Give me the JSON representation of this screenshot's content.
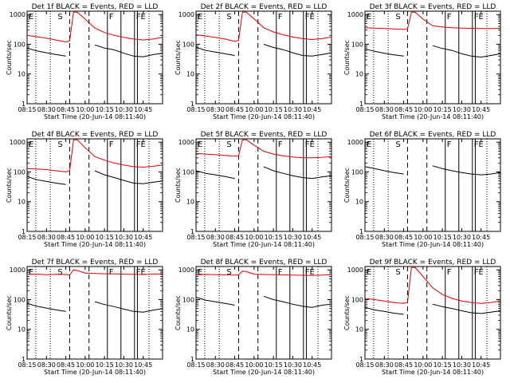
{
  "figure": {
    "ylabel": "Counts/sec",
    "xlabel": "Start Time (20-Jun-14 08:11:40)",
    "xticks": [
      "08:15",
      "08:30",
      "08:45",
      "10:00",
      "10:15",
      "10:30",
      "10:45"
    ],
    "yticks": [
      "1",
      "10",
      "100",
      "1000"
    ],
    "marker_labels": [
      "E",
      "S",
      "F",
      "FE"
    ],
    "colors": {
      "events": "#000000",
      "lld": "#dd0000",
      "markers": "#000000"
    }
  },
  "chart_data": [
    {
      "type": "line",
      "title": "Det 1f BLACK = Events, RED = LLD",
      "series": [
        {
          "name": "Events",
          "color": "#000000",
          "x": [
            0,
            0.5,
            1,
            1.5,
            2,
            2.5,
            3,
            3.5,
            4,
            4.5,
            5,
            5.5,
            6,
            6.5,
            7
          ],
          "y": [
            75,
            60,
            52,
            45,
            40,
            null,
            null,
            95,
            75,
            65,
            50,
            40,
            38,
            45,
            50
          ]
        },
        {
          "name": "LLD",
          "color": "#dd0000",
          "x": [
            0,
            0.5,
            1,
            1.5,
            2,
            2.2,
            2.4,
            2.6,
            3,
            3.5,
            4,
            4.5,
            5,
            5.5,
            6,
            6.5,
            7
          ],
          "y": [
            200,
            180,
            160,
            140,
            120,
            130,
            1200,
            1200,
            700,
            350,
            250,
            200,
            170,
            150,
            140,
            150,
            170
          ]
        }
      ]
    },
    {
      "type": "line",
      "title": "Det 2f BLACK = Events, RED = LLD",
      "series": [
        {
          "name": "Events",
          "color": "#000000",
          "x": [
            0,
            0.5,
            1,
            1.5,
            2,
            2.5,
            3,
            3.5,
            4,
            4.5,
            5,
            5.5,
            6,
            6.5,
            7
          ],
          "y": [
            80,
            62,
            55,
            48,
            42,
            null,
            null,
            100,
            78,
            66,
            52,
            42,
            40,
            45,
            52
          ]
        },
        {
          "name": "LLD",
          "color": "#dd0000",
          "x": [
            0,
            0.5,
            1,
            1.5,
            2,
            2.2,
            2.4,
            2.6,
            3,
            3.5,
            4,
            4.5,
            5,
            5.5,
            6,
            6.5,
            7
          ],
          "y": [
            210,
            190,
            170,
            150,
            125,
            135,
            1200,
            1200,
            720,
            360,
            260,
            210,
            175,
            155,
            145,
            155,
            175
          ]
        }
      ]
    },
    {
      "type": "line",
      "title": "Det 3f BLACK = Events, RED = LLD",
      "series": [
        {
          "name": "Events",
          "color": "#000000",
          "x": [
            0,
            0.5,
            1,
            1.5,
            2,
            2.5,
            3,
            3.5,
            4,
            4.5,
            5,
            5.5,
            6,
            6.5,
            7
          ],
          "y": [
            70,
            58,
            50,
            44,
            40,
            null,
            null,
            90,
            72,
            62,
            48,
            40,
            37,
            42,
            48
          ]
        },
        {
          "name": "LLD",
          "color": "#dd0000",
          "x": [
            0,
            0.5,
            1,
            1.5,
            2,
            2.2,
            2.4,
            2.6,
            3,
            3.5,
            4,
            4.5,
            5,
            5.5,
            6,
            6.5,
            7
          ],
          "y": [
            360,
            350,
            340,
            330,
            320,
            330,
            1200,
            1200,
            700,
            420,
            380,
            360,
            350,
            345,
            340,
            340,
            345
          ]
        }
      ]
    },
    {
      "type": "line",
      "title": "Det 4f BLACK = Events, RED = LLD",
      "series": [
        {
          "name": "Events",
          "color": "#000000",
          "x": [
            0,
            0.5,
            1,
            1.5,
            2,
            2.5,
            3,
            3.5,
            4,
            4.5,
            5,
            5.5,
            6,
            6.5,
            7
          ],
          "y": [
            70,
            55,
            48,
            42,
            38,
            null,
            null,
            110,
            80,
            65,
            52,
            42,
            40,
            45,
            50
          ]
        },
        {
          "name": "LLD",
          "color": "#dd0000",
          "x": [
            0,
            0.5,
            1,
            1.5,
            2,
            2.2,
            2.4,
            2.6,
            3,
            3.5,
            4,
            4.5,
            5,
            5.5,
            6,
            6.5,
            7
          ],
          "y": [
            130,
            125,
            120,
            110,
            100,
            110,
            1200,
            1200,
            650,
            330,
            250,
            200,
            170,
            150,
            145,
            155,
            170
          ]
        }
      ]
    },
    {
      "type": "line",
      "title": "Det 5f BLACK = Events, RED = LLD",
      "series": [
        {
          "name": "Events",
          "color": "#000000",
          "x": [
            0,
            0.5,
            1,
            1.5,
            2,
            2.5,
            3,
            3.5,
            4,
            4.5,
            5,
            5.5,
            6,
            6.5,
            7
          ],
          "y": [
            110,
            90,
            80,
            70,
            60,
            null,
            null,
            150,
            110,
            90,
            75,
            65,
            60,
            68,
            75
          ]
        },
        {
          "name": "LLD",
          "color": "#dd0000",
          "x": [
            0,
            0.5,
            1,
            1.5,
            2,
            2.2,
            2.4,
            2.6,
            3,
            3.5,
            4,
            4.5,
            5,
            5.5,
            6,
            6.5,
            7
          ],
          "y": [
            420,
            400,
            380,
            360,
            340,
            350,
            1200,
            1200,
            800,
            500,
            400,
            350,
            320,
            300,
            300,
            310,
            330
          ]
        }
      ]
    },
    {
      "type": "line",
      "title": "Det 6f BLACK = Events, RED = LLD",
      "series": [
        {
          "name": "Events",
          "color": "#000000",
          "x": [
            0,
            0.5,
            1,
            1.5,
            2,
            2.5,
            3,
            3.5,
            4,
            4.5,
            5,
            5.5,
            6,
            6.5,
            7
          ],
          "y": [
            150,
            130,
            110,
            95,
            85,
            null,
            null,
            160,
            130,
            110,
            95,
            85,
            80,
            85,
            95
          ]
        }
      ]
    },
    {
      "type": "line",
      "title": "Det 7f BLACK = Events, RED = LLD",
      "series": [
        {
          "name": "Events",
          "color": "#000000",
          "x": [
            0,
            0.5,
            1,
            1.5,
            2,
            2.5,
            3,
            3.5,
            4,
            4.5,
            5,
            5.5,
            6,
            6.5,
            7
          ],
          "y": [
            75,
            60,
            52,
            45,
            40,
            null,
            null,
            85,
            68,
            58,
            48,
            40,
            38,
            44,
            50
          ]
        },
        {
          "name": "LLD",
          "color": "#dd0000",
          "x": [
            0,
            0.5,
            1,
            1.5,
            2,
            2.2,
            2.4,
            2.6,
            3,
            3.5,
            4,
            4.5,
            5,
            5.5,
            6,
            6.5,
            7
          ],
          "y": [
            700,
            720,
            690,
            710,
            700,
            680,
            1000,
            950,
            780,
            760,
            740,
            730,
            720,
            710,
            700,
            720,
            730
          ]
        }
      ]
    },
    {
      "type": "line",
      "title": "Det 8f BLACK = Events, RED = LLD",
      "series": [
        {
          "name": "Events",
          "color": "#000000",
          "x": [
            0,
            0.5,
            1,
            1.5,
            2,
            2.5,
            3,
            3.5,
            4,
            4.5,
            5,
            5.5,
            6,
            6.5,
            7
          ],
          "y": [
            120,
            95,
            85,
            75,
            65,
            null,
            null,
            130,
            100,
            85,
            70,
            60,
            55,
            65,
            70
          ]
        },
        {
          "name": "LLD",
          "color": "#dd0000",
          "x": [
            0,
            0.5,
            1,
            1.5,
            2,
            2.2,
            2.4,
            2.6,
            3,
            3.5,
            4,
            4.5,
            5,
            5.5,
            6,
            6.5,
            7
          ],
          "y": [
            680,
            700,
            690,
            680,
            670,
            680,
            900,
            880,
            720,
            700,
            690,
            680,
            670,
            660,
            650,
            670,
            690
          ]
        }
      ]
    },
    {
      "type": "line",
      "title": "Det 9f BLACK = Events, RED = LLD",
      "series": [
        {
          "name": "Events",
          "color": "#000000",
          "x": [
            0,
            0.5,
            1,
            1.5,
            2,
            2.5,
            3,
            3.5,
            4,
            4.5,
            5,
            5.5,
            6,
            6.5,
            7
          ],
          "y": [
            55,
            45,
            40,
            35,
            32,
            null,
            null,
            70,
            58,
            50,
            42,
            36,
            34,
            38,
            42
          ]
        },
        {
          "name": "LLD",
          "color": "#dd0000",
          "x": [
            0,
            0.5,
            1,
            1.5,
            2,
            2.2,
            2.4,
            2.6,
            3,
            3.5,
            4,
            4.5,
            5,
            5.5,
            6,
            6.5,
            7
          ],
          "y": [
            110,
            100,
            90,
            80,
            75,
            80,
            1200,
            1200,
            600,
            250,
            150,
            110,
            90,
            80,
            75,
            80,
            90
          ]
        }
      ]
    }
  ]
}
